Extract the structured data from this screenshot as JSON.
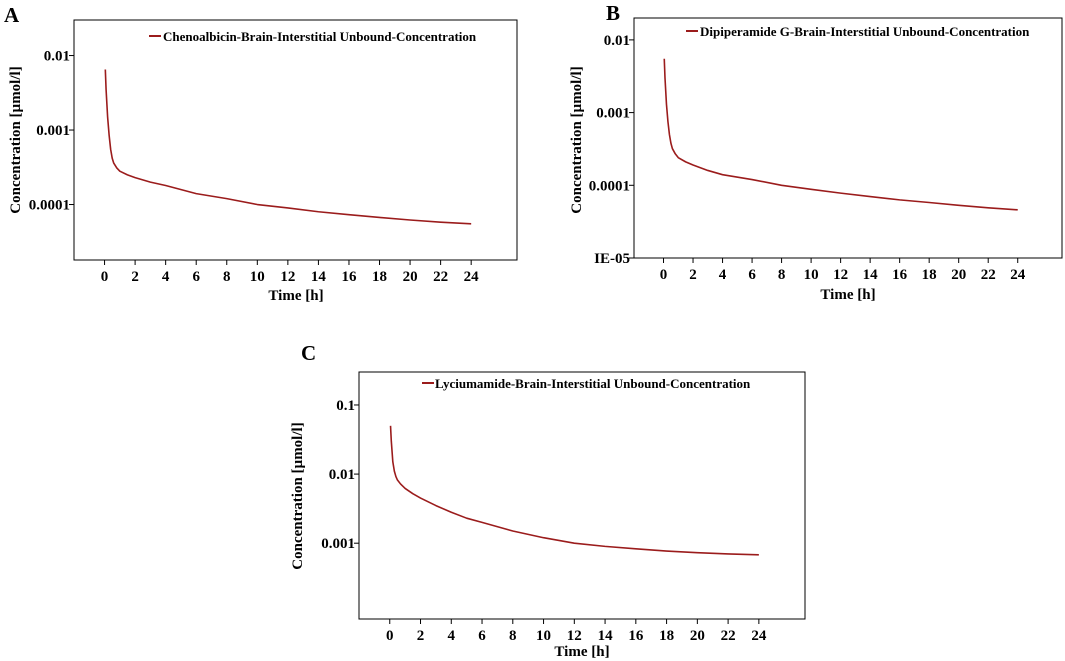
{
  "colors": {
    "series": "#9b1c1c",
    "axis": "#000000",
    "background": "#ffffff"
  },
  "chart_data": [
    {
      "panel": "A",
      "type": "line",
      "xlabel": "Time [h]",
      "ylabel": "Concentration [µmol/l]",
      "yscale": "log",
      "xlim": [
        -2,
        27
      ],
      "ylim": [
        1.8e-05,
        0.03
      ],
      "xticks": [
        0,
        2,
        4,
        6,
        8,
        10,
        12,
        14,
        16,
        18,
        20,
        22,
        24
      ],
      "yticks": [
        0.01,
        0.001,
        0.0001
      ],
      "ytick_labels": [
        "0.01",
        "0.001",
        "0.0001"
      ],
      "legend_position": "top-right",
      "series": [
        {
          "name": "Chenoalbicin-Brain-Interstitial Unbound-Concentration",
          "x": [
            0.05,
            0.1,
            0.2,
            0.3,
            0.4,
            0.5,
            0.6,
            0.8,
            1,
            1.5,
            2,
            3,
            4,
            6,
            8,
            10,
            12,
            14,
            16,
            18,
            20,
            22,
            24
          ],
          "y": [
            0.0065,
            0.0035,
            0.0015,
            0.00085,
            0.00055,
            0.00042,
            0.00036,
            0.00031,
            0.00028,
            0.00025,
            0.00023,
            0.0002,
            0.00018,
            0.00014,
            0.00012,
            0.0001,
            9e-05,
            8e-05,
            7.3e-05,
            6.7e-05,
            6.2e-05,
            5.8e-05,
            5.5e-05
          ]
        }
      ]
    },
    {
      "panel": "B",
      "type": "line",
      "xlabel": "Time [h]",
      "ylabel": "Concentration [µmol/l]",
      "yscale": "log",
      "xlim": [
        -2,
        27
      ],
      "ylim": [
        1e-05,
        0.02
      ],
      "xticks": [
        0,
        2,
        4,
        6,
        8,
        10,
        12,
        14,
        16,
        18,
        20,
        22,
        24
      ],
      "yticks": [
        0.01,
        0.001,
        0.0001,
        1e-05
      ],
      "ytick_labels": [
        "0.01",
        "0.001",
        "0.0001",
        "IE-05"
      ],
      "legend_position": "top-right",
      "series": [
        {
          "name": "Dipiperamide G-Brain-Interstitial Unbound-Concentration",
          "x": [
            0.05,
            0.1,
            0.2,
            0.3,
            0.4,
            0.5,
            0.6,
            0.8,
            1,
            1.5,
            2,
            3,
            4,
            6,
            8,
            10,
            12,
            14,
            16,
            18,
            20,
            22,
            24
          ],
          "y": [
            0.0055,
            0.003,
            0.0013,
            0.00075,
            0.0005,
            0.00038,
            0.00032,
            0.00027,
            0.00024,
            0.00021,
            0.00019,
            0.00016,
            0.00014,
            0.00012,
            0.0001,
            8.8e-05,
            7.8e-05,
            7e-05,
            6.3e-05,
            5.8e-05,
            5.3e-05,
            4.9e-05,
            4.6e-05
          ]
        }
      ]
    },
    {
      "panel": "C",
      "type": "line",
      "xlabel": "Time [h]",
      "ylabel": "Concentration [µmol/l]",
      "yscale": "log",
      "xlim": [
        -2,
        27
      ],
      "ylim": [
        8e-05,
        0.3
      ],
      "xticks": [
        0,
        2,
        4,
        6,
        8,
        10,
        12,
        14,
        16,
        18,
        20,
        22,
        24
      ],
      "yticks": [
        0.1,
        0.01,
        0.001
      ],
      "ytick_labels": [
        "0.1",
        "0.01",
        "0.001"
      ],
      "legend_position": "top-right",
      "series": [
        {
          "name": "Lyciumamide-Brain-Interstitial Unbound-Concentration",
          "x": [
            0.05,
            0.1,
            0.2,
            0.3,
            0.4,
            0.5,
            0.7,
            1,
            1.5,
            2,
            3,
            4,
            5,
            6,
            8,
            10,
            12,
            14,
            16,
            18,
            20,
            22,
            24
          ],
          "y": [
            0.05,
            0.03,
            0.015,
            0.011,
            0.0092,
            0.0082,
            0.0072,
            0.0062,
            0.0052,
            0.0045,
            0.0035,
            0.0028,
            0.0023,
            0.002,
            0.0015,
            0.0012,
            0.001,
            0.0009,
            0.00083,
            0.00077,
            0.00073,
            0.0007,
            0.00068
          ]
        }
      ]
    }
  ]
}
